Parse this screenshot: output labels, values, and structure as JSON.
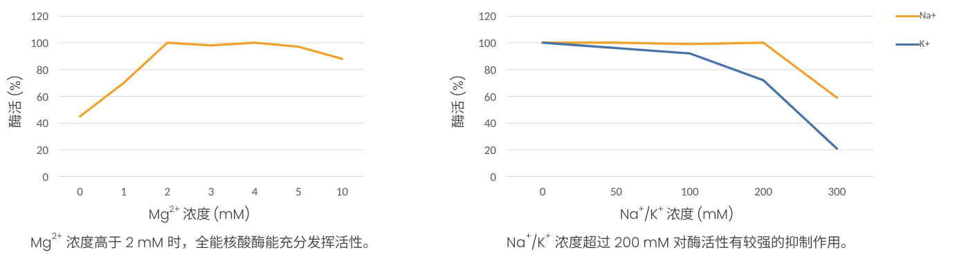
{
  "figure": {
    "background": "#FFFFFF",
    "gridline_color": "#D9D9D9",
    "tick_label_color": "#595959",
    "axis_title_color": "#3F3F3F",
    "caption_color": "#3F3F3F",
    "line_width": 3.3
  },
  "chart_data": [
    {
      "type": "line",
      "categories": [
        "0",
        "1",
        "2",
        "3",
        "4",
        "5",
        "10"
      ],
      "series": [
        {
          "name": "",
          "color": "#F0A32C",
          "values": [
            45,
            70,
            100,
            98,
            100,
            97,
            88
          ]
        }
      ],
      "xlabel": "Mg²⁺ 浓度 (mM)",
      "xlabel_parts": [
        {
          "t": "Mg"
        },
        {
          "t": "2+",
          "sup": true
        },
        {
          "t": " 浓度 (mM)"
        }
      ],
      "ylabel": "酶活 (%)",
      "ylim": [
        0,
        120
      ],
      "yticks": [
        0,
        20,
        40,
        60,
        80,
        100,
        120
      ],
      "grid": "horizontal",
      "legend_position": "none",
      "caption": "Mg²⁺ 浓度高于 2 mM 时，全能核酸酶能充分发挥活性。",
      "caption_parts": [
        {
          "t": "Mg"
        },
        {
          "t": "2+",
          "sup": true
        },
        {
          "t": " 浓度高于 2 mM 时，全能核酸酶能充分发挥活性。"
        }
      ]
    },
    {
      "type": "line",
      "categories": [
        "0",
        "50",
        "100",
        "200",
        "300"
      ],
      "series": [
        {
          "name": "Na+",
          "color": "#F0A32C",
          "values": [
            100,
            100,
            99,
            100,
            59
          ]
        },
        {
          "name": "K+",
          "color": "#4674A9",
          "values": [
            100,
            96,
            92,
            72,
            21
          ]
        }
      ],
      "xlabel": "Na⁺/K⁺ 浓度 (mM)",
      "xlabel_parts": [
        {
          "t": "Na"
        },
        {
          "t": "+",
          "sup": true
        },
        {
          "t": "/K"
        },
        {
          "t": "+",
          "sup": true
        },
        {
          "t": " 浓度 (mM)"
        }
      ],
      "ylabel": "酶活 (%)",
      "ylim": [
        0,
        120
      ],
      "yticks": [
        0,
        20,
        40,
        60,
        80,
        100,
        120
      ],
      "grid": "horizontal",
      "legend_position": "right",
      "legend_labels": [
        "Na+",
        "K+"
      ],
      "caption": "Na⁺/K⁺ 浓度超过 200 mM 对酶活性有较强的抑制作用。",
      "caption_parts": [
        {
          "t": "Na"
        },
        {
          "t": "+",
          "sup": true
        },
        {
          "t": "/K"
        },
        {
          "t": "+",
          "sup": true
        },
        {
          "t": " 浓度超过 200 mM 对酶活性有较强的抑制作用。"
        }
      ]
    }
  ]
}
